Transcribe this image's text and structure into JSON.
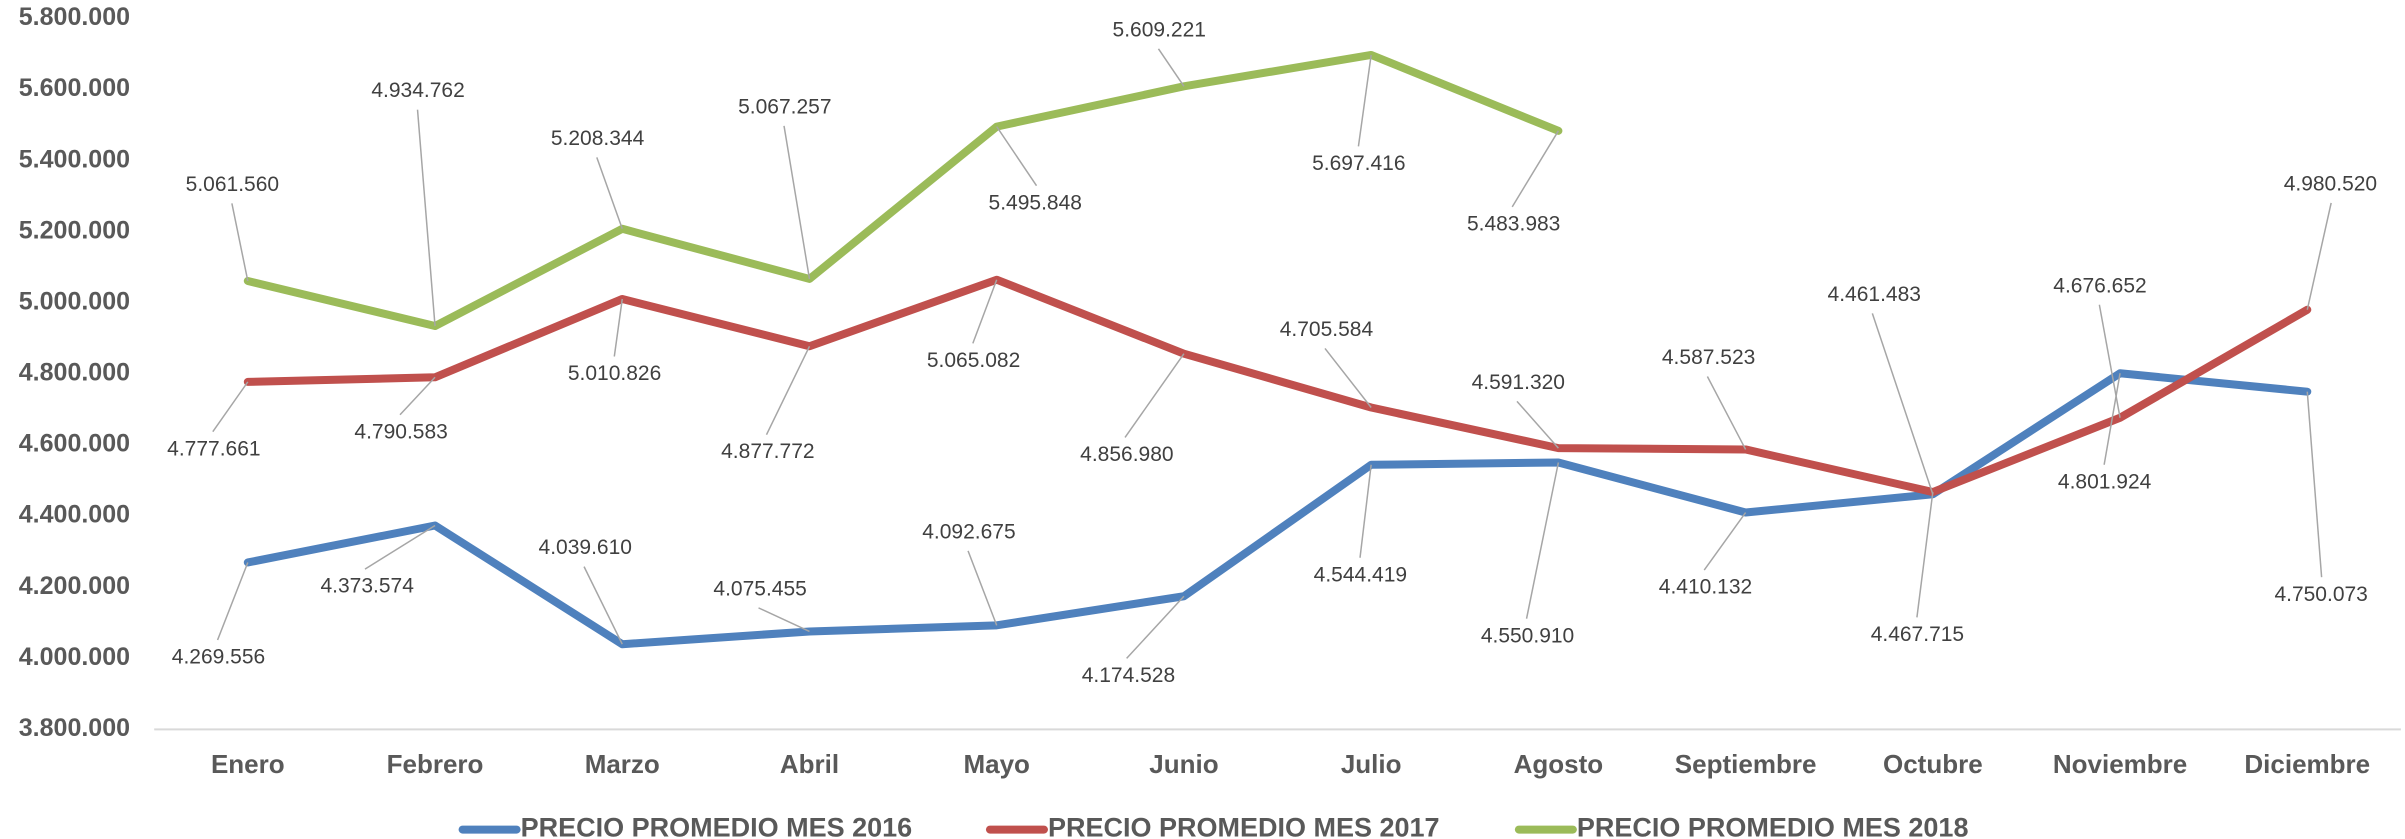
{
  "chart_data": {
    "type": "line",
    "categories": [
      "Enero",
      "Febrero",
      "Marzo",
      "Abril",
      "Mayo",
      "Junio",
      "Julio",
      "Agosto",
      "Septiembre",
      "Octubre",
      "Noviembre",
      "Diciembre"
    ],
    "series": [
      {
        "name": "PRECIO PROMEDIO MES 2016",
        "color": "#4f81bd",
        "values": [
          4269556,
          4373574,
          4039610,
          4075455,
          4092675,
          4174528,
          4544419,
          4550910,
          4410132,
          4461483,
          4801924,
          4750073
        ],
        "value_labels": [
          "4.269.556",
          "4.373.574",
          "4.039.610",
          "4.075.455",
          "4.092.675",
          "4.174.528",
          "4.544.419",
          "4.550.910",
          "4.410.132",
          "4.461.483",
          "4.801.924",
          "4.750.073"
        ]
      },
      {
        "name": "PRECIO PROMEDIO MES 2017",
        "color": "#c0504d",
        "values": [
          4777661,
          4790583,
          5010826,
          4877772,
          5065082,
          4856980,
          4705584,
          4591320,
          4587523,
          4467715,
          4676652,
          4980520
        ],
        "value_labels": [
          "4.777.661",
          "4.790.583",
          "5.010.826",
          "4.877.772",
          "5.065.082",
          "4.856.980",
          "4.705.584",
          "4.591.320",
          "4.587.523",
          "4.467.715",
          "4.676.652",
          "4.980.520"
        ]
      },
      {
        "name": "PRECIO PROMEDIO MES 2018",
        "color": "#9bbb59",
        "values": [
          5061560,
          4934762,
          5208344,
          5067257,
          5495848,
          5609221,
          5697416,
          5483983,
          null,
          null,
          null,
          null
        ],
        "value_labels": [
          "5.061.560",
          "4.934.762",
          "5.208.344",
          "5.067.257",
          "5.495.848",
          "5.609.221",
          "5.697.416",
          "5.483.983",
          null,
          null,
          null,
          null
        ]
      }
    ],
    "ylim": [
      3800000,
      5800000
    ],
    "yticks": [
      {
        "value": 3800000,
        "label": "3.800.000"
      },
      {
        "value": 4000000,
        "label": "4.000.000"
      },
      {
        "value": 4200000,
        "label": "4.200.000"
      },
      {
        "value": 4400000,
        "label": "4.400.000"
      },
      {
        "value": 4600000,
        "label": "4.600.000"
      },
      {
        "value": 4800000,
        "label": "4.800.000"
      },
      {
        "value": 5000000,
        "label": "5.000.000"
      },
      {
        "value": 5200000,
        "label": "5.200.000"
      },
      {
        "value": 5400000,
        "label": "5.400.000"
      },
      {
        "value": 5600000,
        "label": "5.600.000"
      },
      {
        "value": 5800000,
        "label": "5.800.000"
      }
    ],
    "grid": false,
    "legend": "bottom"
  }
}
